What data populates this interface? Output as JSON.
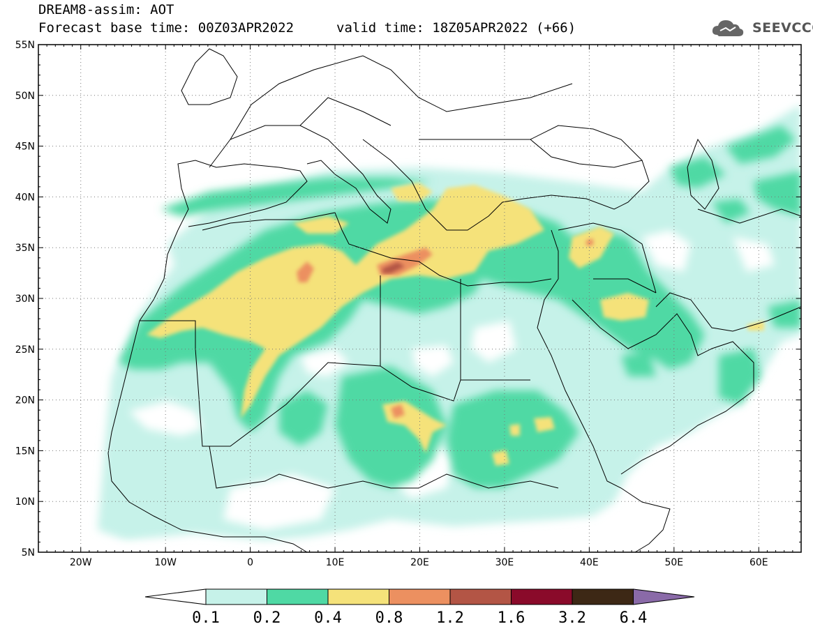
{
  "header": {
    "title": "DREAM8-assim: AOT",
    "forecast_base": "Forecast base time: 00Z03APR2022",
    "valid_time": "valid time: 18Z05APR2022 (+66)",
    "logo_text": "SEEVCCC",
    "logo_icon": "cloud-logo-icon"
  },
  "map": {
    "lat_labels": [
      "55N",
      "50N",
      "45N",
      "40N",
      "35N",
      "30N",
      "25N",
      "20N",
      "15N",
      "10N",
      "5N"
    ],
    "lat_values": [
      55,
      50,
      45,
      40,
      35,
      30,
      25,
      20,
      15,
      10,
      5
    ],
    "lon_labels": [
      "20W",
      "10W",
      "0",
      "10E",
      "20E",
      "30E",
      "40E",
      "50E",
      "60E"
    ],
    "lon_values": [
      -20,
      -10,
      0,
      10,
      20,
      30,
      40,
      50,
      60
    ],
    "lon_range": [
      -25,
      65
    ],
    "lat_range": [
      5,
      55
    ]
  },
  "colorbar": {
    "labels": [
      "0.1",
      "0.2",
      "0.4",
      "0.8",
      "1.2",
      "1.6",
      "3.2",
      "6.4"
    ],
    "colors": [
      "#c6f2e9",
      "#4fd9a4",
      "#f5e27a",
      "#ec9060",
      "#b35545",
      "#8a0a2a",
      "#3d2815",
      "#8a6aa8"
    ],
    "under_color": "#ffffff"
  }
}
